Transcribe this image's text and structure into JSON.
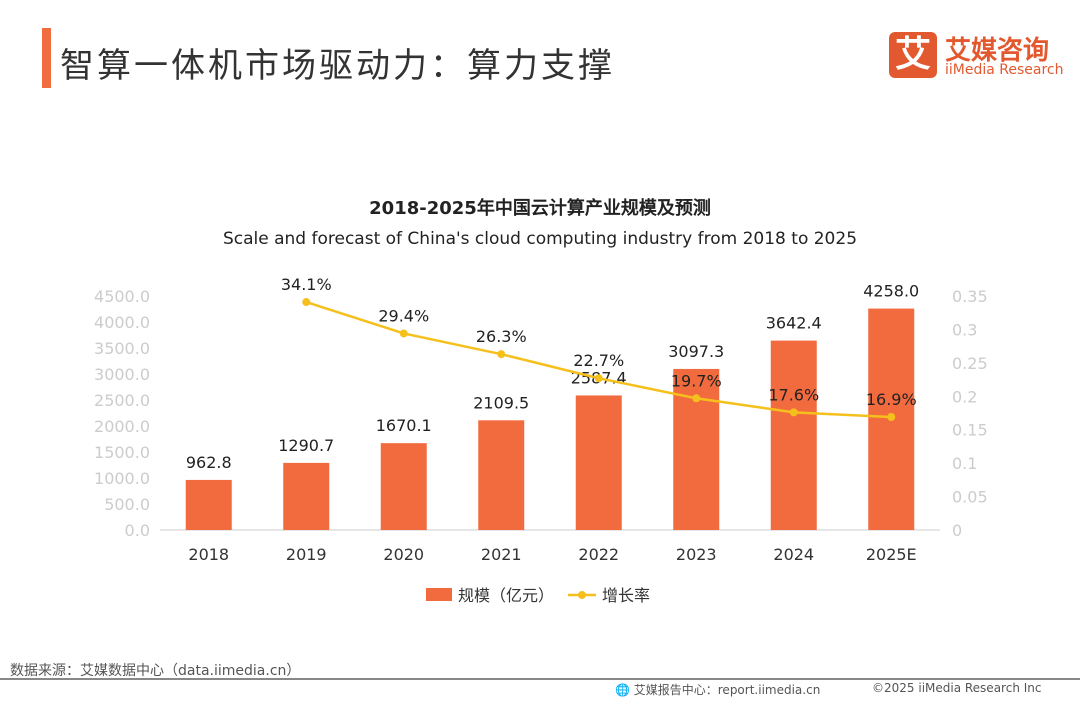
{
  "header": {
    "title": "智算一体机市场驱动力：算力支撑",
    "logo_mark": "艾",
    "logo_cn": "艾媒咨询",
    "logo_en": "iiMedia Research"
  },
  "chart_data": {
    "type": "bar+line",
    "title": "2018-2025年中国云计算产业规模及预测",
    "subtitle": "Scale and forecast of China's cloud computing industry from 2018 to 2025",
    "categories": [
      "2018",
      "2019",
      "2020",
      "2021",
      "2022",
      "2023",
      "2024",
      "2025E"
    ],
    "series": [
      {
        "name": "规模（亿元）",
        "type": "bar",
        "axis": "left",
        "color": "#f26b3e",
        "values": [
          962.8,
          1290.7,
          1670.1,
          2109.5,
          2587.4,
          3097.3,
          3642.4,
          4258.0
        ],
        "labels": [
          "962.8",
          "1290.7",
          "1670.1",
          "2109.5",
          "2587.4",
          "3097.3",
          "3642.4",
          "4258.0"
        ]
      },
      {
        "name": "增长率",
        "type": "line",
        "axis": "right",
        "color": "#f5c01c",
        "values": [
          null,
          0.341,
          0.294,
          0.263,
          0.227,
          0.197,
          0.176,
          0.169
        ],
        "labels": [
          "",
          "34.1%",
          "29.4%",
          "26.3%",
          "22.7%",
          "19.7%",
          "17.6%",
          "16.9%"
        ]
      }
    ],
    "y_left": {
      "ylim": [
        0,
        4500
      ],
      "ticks": [
        "0.0",
        "500.0",
        "1000.0",
        "1500.0",
        "2000.0",
        "2500.0",
        "3000.0",
        "3500.0",
        "4000.0",
        "4500.0"
      ]
    },
    "y_right": {
      "ylim": [
        0,
        0.35
      ],
      "ticks": [
        "0",
        "0.05",
        "0.1",
        "0.15",
        "0.2",
        "0.25",
        "0.3",
        "0.35"
      ]
    },
    "legend": "bottom"
  },
  "footer": {
    "source": "数据来源：艾媒数据中心（data.iimedia.cn）",
    "report": "艾媒报告中心：report.iimedia.cn",
    "copyright": "©2025  iiMedia Research  Inc"
  }
}
